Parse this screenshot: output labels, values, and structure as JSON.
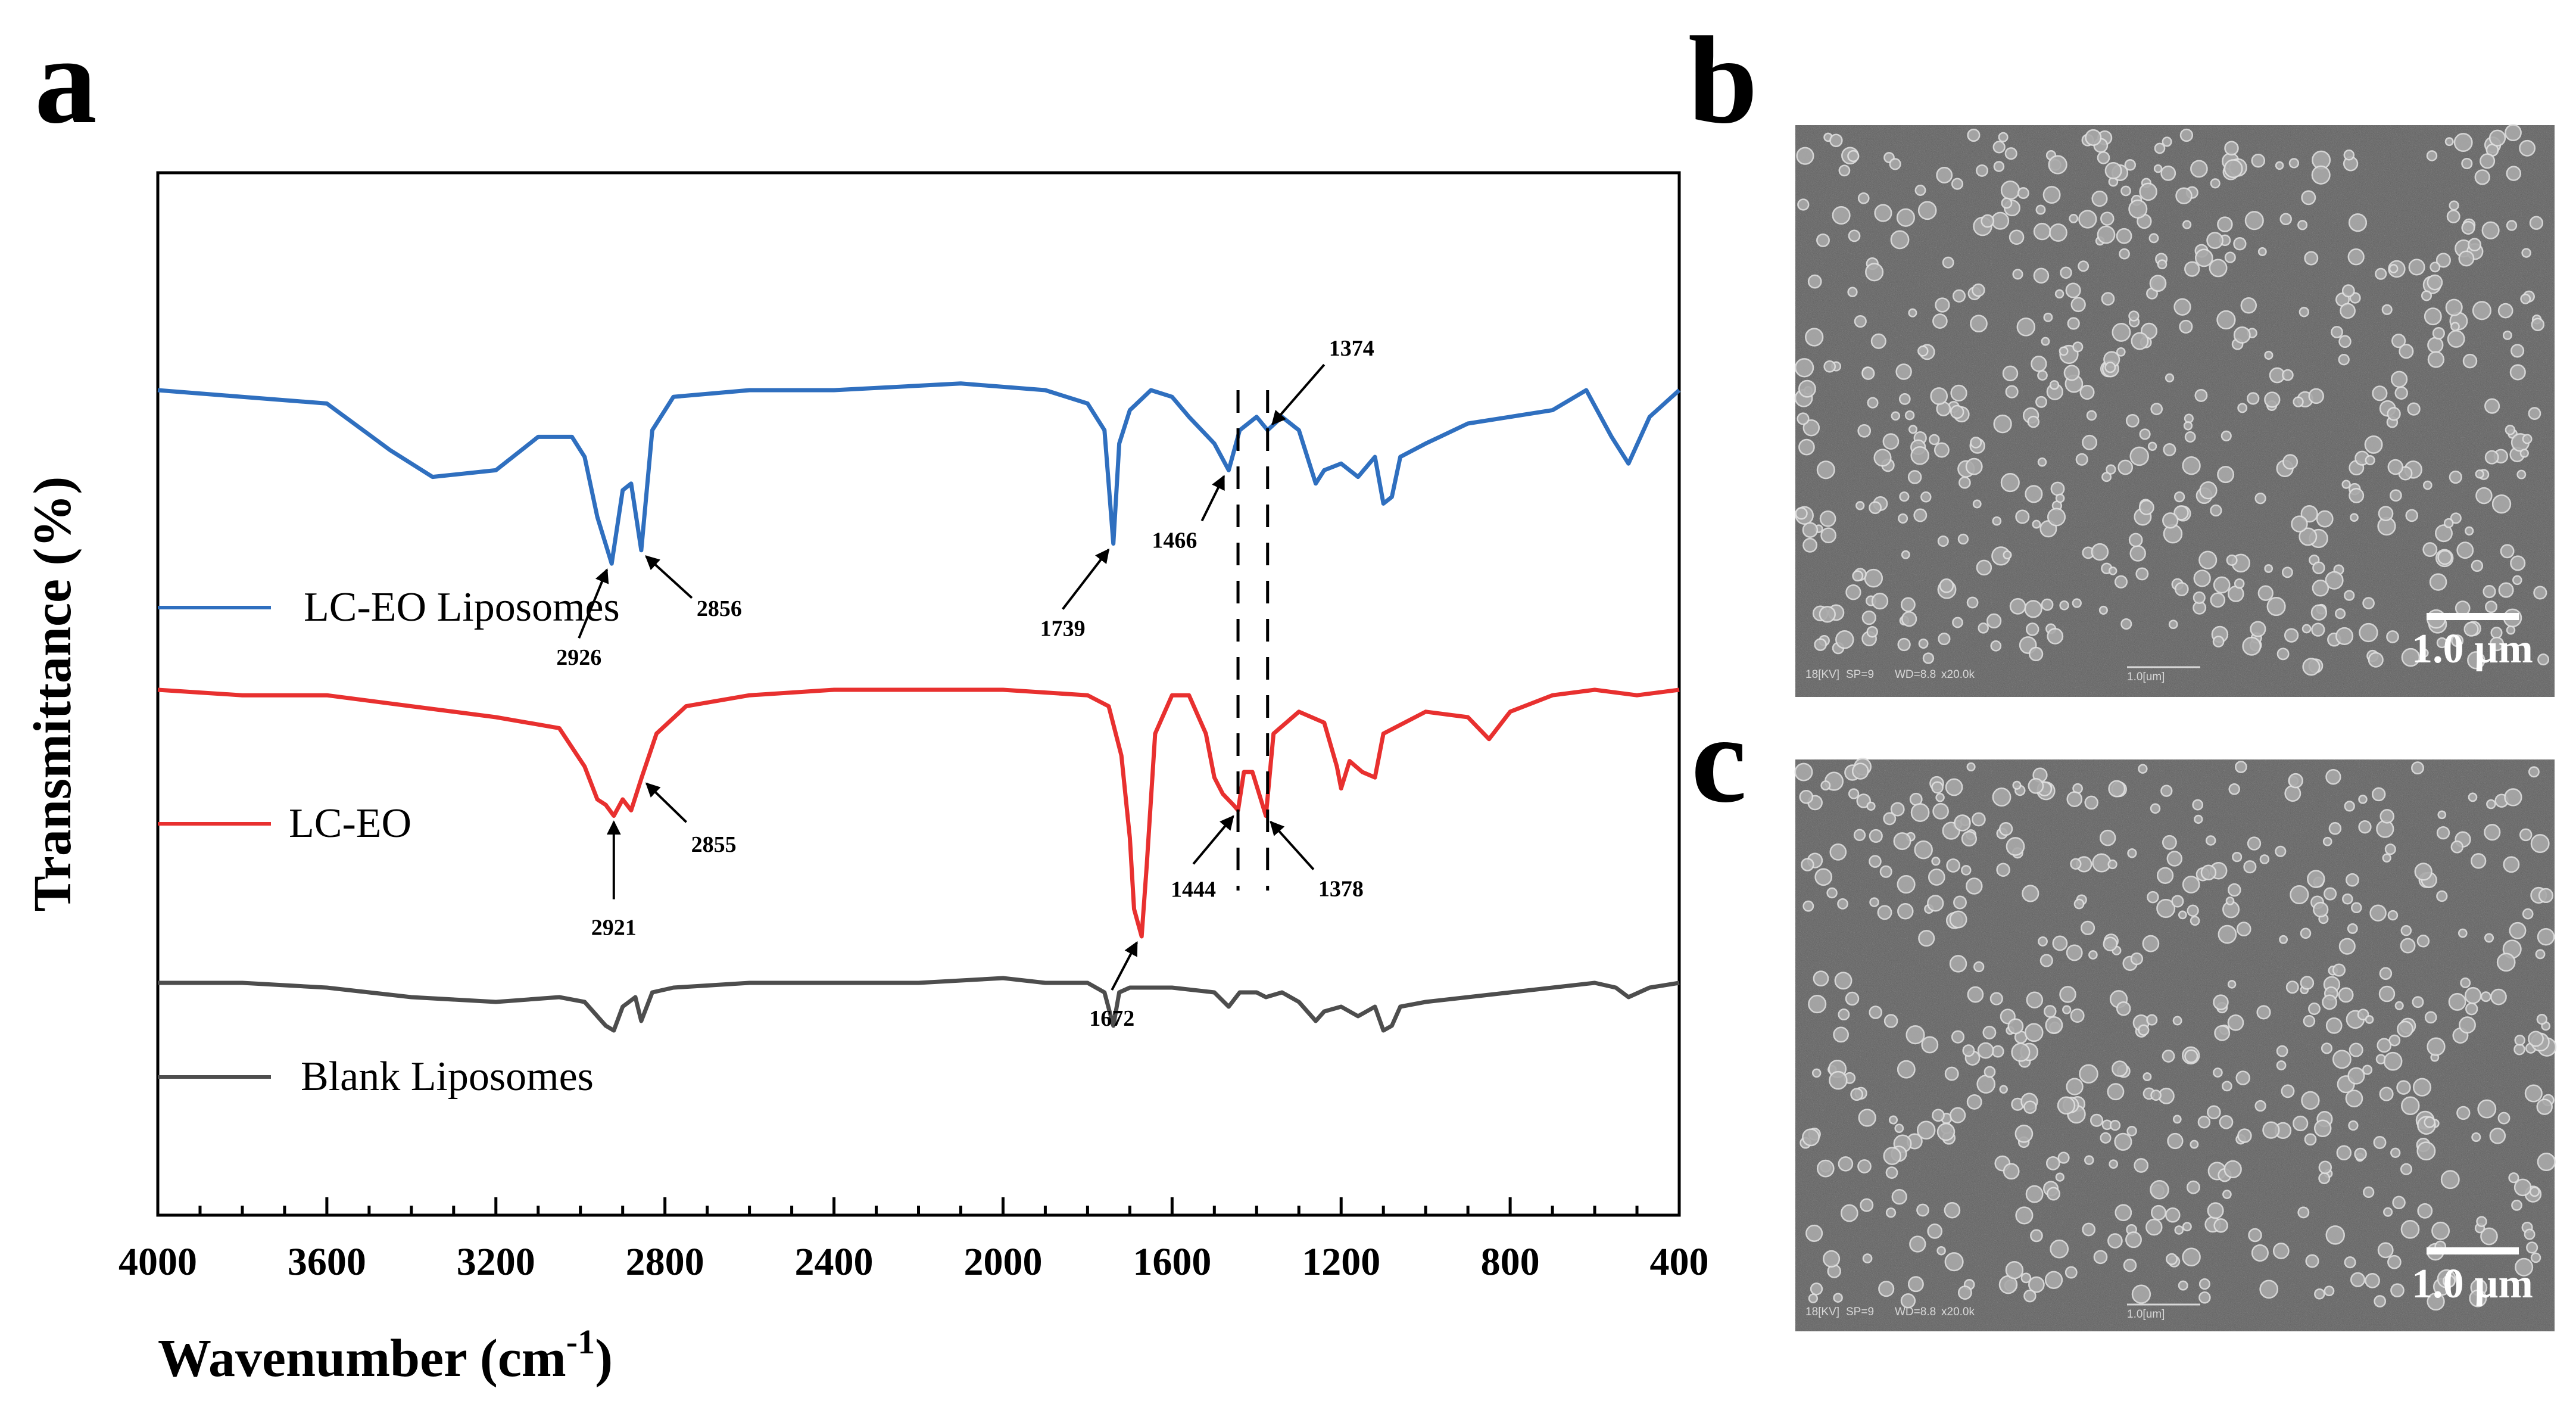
{
  "panels": {
    "a": "a",
    "b": "b",
    "c": "c"
  },
  "chart_data": {
    "type": "line",
    "title": "",
    "xlabel": "Wavenumber (cm",
    "xlabel_sup": "-1",
    "xlabel_close": ")",
    "ylabel": "Transmittance (%)",
    "xlim": [
      4000,
      400
    ],
    "x_ticks": [
      "4000",
      "3600",
      "3200",
      "2800",
      "2400",
      "2000",
      "1600",
      "1200",
      "800",
      "400"
    ],
    "y_ticks_shown": false,
    "legend_location": "left, beside each trace",
    "series": [
      {
        "name": "LC-EO Liposomes",
        "color": "#2f6fbf",
        "baseline": 100,
        "points": [
          [
            4000,
            100
          ],
          [
            3800,
            99
          ],
          [
            3600,
            98
          ],
          [
            3450,
            91
          ],
          [
            3350,
            87
          ],
          [
            3200,
            88
          ],
          [
            3100,
            93
          ],
          [
            3020,
            93
          ],
          [
            2990,
            90
          ],
          [
            2960,
            81
          ],
          [
            2926,
            74
          ],
          [
            2900,
            85
          ],
          [
            2880,
            86
          ],
          [
            2856,
            76
          ],
          [
            2830,
            94
          ],
          [
            2780,
            99
          ],
          [
            2600,
            100
          ],
          [
            2400,
            100
          ],
          [
            2100,
            101
          ],
          [
            1900,
            100
          ],
          [
            1800,
            98
          ],
          [
            1760,
            94
          ],
          [
            1739,
            77
          ],
          [
            1725,
            92
          ],
          [
            1700,
            97
          ],
          [
            1650,
            100
          ],
          [
            1600,
            99
          ],
          [
            1560,
            96
          ],
          [
            1500,
            92
          ],
          [
            1466,
            88
          ],
          [
            1440,
            94
          ],
          [
            1400,
            96
          ],
          [
            1374,
            94
          ],
          [
            1340,
            96
          ],
          [
            1300,
            94
          ],
          [
            1260,
            86
          ],
          [
            1240,
            88
          ],
          [
            1200,
            89
          ],
          [
            1160,
            87
          ],
          [
            1120,
            90
          ],
          [
            1100,
            83
          ],
          [
            1080,
            84
          ],
          [
            1060,
            90
          ],
          [
            1000,
            92
          ],
          [
            900,
            95
          ],
          [
            800,
            96
          ],
          [
            700,
            97
          ],
          [
            620,
            100
          ],
          [
            560,
            93
          ],
          [
            520,
            89
          ],
          [
            470,
            96
          ],
          [
            400,
            100
          ]
        ]
      },
      {
        "name": "LC-EO",
        "color": "#e8302f",
        "baseline": 100,
        "points": [
          [
            4000,
            100
          ],
          [
            3800,
            99
          ],
          [
            3600,
            99
          ],
          [
            3400,
            97
          ],
          [
            3200,
            95
          ],
          [
            3050,
            93
          ],
          [
            2990,
            86
          ],
          [
            2960,
            80
          ],
          [
            2940,
            79
          ],
          [
            2921,
            77
          ],
          [
            2900,
            80
          ],
          [
            2880,
            78
          ],
          [
            2855,
            84
          ],
          [
            2820,
            92
          ],
          [
            2750,
            97
          ],
          [
            2600,
            99
          ],
          [
            2400,
            100
          ],
          [
            2200,
            100
          ],
          [
            2000,
            100
          ],
          [
            1800,
            99
          ],
          [
            1750,
            97
          ],
          [
            1720,
            88
          ],
          [
            1700,
            73
          ],
          [
            1690,
            60
          ],
          [
            1672,
            55
          ],
          [
            1660,
            68
          ],
          [
            1640,
            92
          ],
          [
            1600,
            99
          ],
          [
            1560,
            99
          ],
          [
            1520,
            92
          ],
          [
            1500,
            84
          ],
          [
            1480,
            81
          ],
          [
            1455,
            79
          ],
          [
            1444,
            78
          ],
          [
            1430,
            85
          ],
          [
            1410,
            85
          ],
          [
            1390,
            80
          ],
          [
            1378,
            77
          ],
          [
            1360,
            92
          ],
          [
            1300,
            96
          ],
          [
            1240,
            94
          ],
          [
            1210,
            86
          ],
          [
            1200,
            82
          ],
          [
            1180,
            87
          ],
          [
            1150,
            85
          ],
          [
            1120,
            84
          ],
          [
            1100,
            92
          ],
          [
            1000,
            96
          ],
          [
            900,
            95
          ],
          [
            850,
            91
          ],
          [
            800,
            96
          ],
          [
            700,
            99
          ],
          [
            600,
            100
          ],
          [
            500,
            99
          ],
          [
            400,
            100
          ]
        ]
      },
      {
        "name": "Blank Liposomes",
        "color": "#4d4d4d",
        "baseline": 100,
        "points": [
          [
            4000,
            100
          ],
          [
            3800,
            100
          ],
          [
            3600,
            99
          ],
          [
            3400,
            97
          ],
          [
            3200,
            96
          ],
          [
            3050,
            97
          ],
          [
            2990,
            96
          ],
          [
            2960,
            93
          ],
          [
            2940,
            91
          ],
          [
            2921,
            90
          ],
          [
            2900,
            95
          ],
          [
            2870,
            97
          ],
          [
            2856,
            92
          ],
          [
            2830,
            98
          ],
          [
            2780,
            99
          ],
          [
            2600,
            100
          ],
          [
            2400,
            100
          ],
          [
            2200,
            100
          ],
          [
            2000,
            101
          ],
          [
            1900,
            100
          ],
          [
            1800,
            100
          ],
          [
            1760,
            98
          ],
          [
            1739,
            91
          ],
          [
            1725,
            98
          ],
          [
            1700,
            99
          ],
          [
            1600,
            99
          ],
          [
            1500,
            98
          ],
          [
            1466,
            95
          ],
          [
            1440,
            98
          ],
          [
            1400,
            98
          ],
          [
            1378,
            97
          ],
          [
            1340,
            98
          ],
          [
            1300,
            96
          ],
          [
            1260,
            92
          ],
          [
            1240,
            94
          ],
          [
            1200,
            95
          ],
          [
            1160,
            93
          ],
          [
            1120,
            95
          ],
          [
            1100,
            90
          ],
          [
            1080,
            91
          ],
          [
            1060,
            95
          ],
          [
            1000,
            96
          ],
          [
            900,
            97
          ],
          [
            800,
            98
          ],
          [
            700,
            99
          ],
          [
            600,
            100
          ],
          [
            550,
            99
          ],
          [
            520,
            97
          ],
          [
            470,
            99
          ],
          [
            400,
            100
          ]
        ]
      }
    ],
    "annotations": [
      {
        "series": "LC-EO Liposomes",
        "text": "2926",
        "x": 2926
      },
      {
        "series": "LC-EO Liposomes",
        "text": "2856",
        "x": 2856
      },
      {
        "series": "LC-EO Liposomes",
        "text": "1739",
        "x": 1739
      },
      {
        "series": "LC-EO Liposomes",
        "text": "1466",
        "x": 1466
      },
      {
        "series": "LC-EO Liposomes",
        "text": "1374",
        "x": 1374
      },
      {
        "series": "LC-EO",
        "text": "2921",
        "x": 2921
      },
      {
        "series": "LC-EO",
        "text": "2855",
        "x": 2855
      },
      {
        "series": "LC-EO",
        "text": "1672",
        "x": 1672
      },
      {
        "series": "LC-EO",
        "text": "1444",
        "x": 1444
      },
      {
        "series": "LC-EO",
        "text": "1378",
        "x": 1378
      }
    ],
    "dashed_reference_lines_x": [
      1444,
      1374
    ]
  },
  "sem": {
    "b": {
      "meta": [
        "18[KV]",
        "SP=9",
        "WD=8.8",
        "x20.0k",
        "1.0[um]"
      ],
      "scale_bar": "1.0 µm"
    },
    "c": {
      "meta": [
        "18[KV]",
        "SP=9",
        "WD=8.8",
        "x20.0k",
        "1.0[um]"
      ],
      "scale_bar": "1.0 µm"
    }
  }
}
